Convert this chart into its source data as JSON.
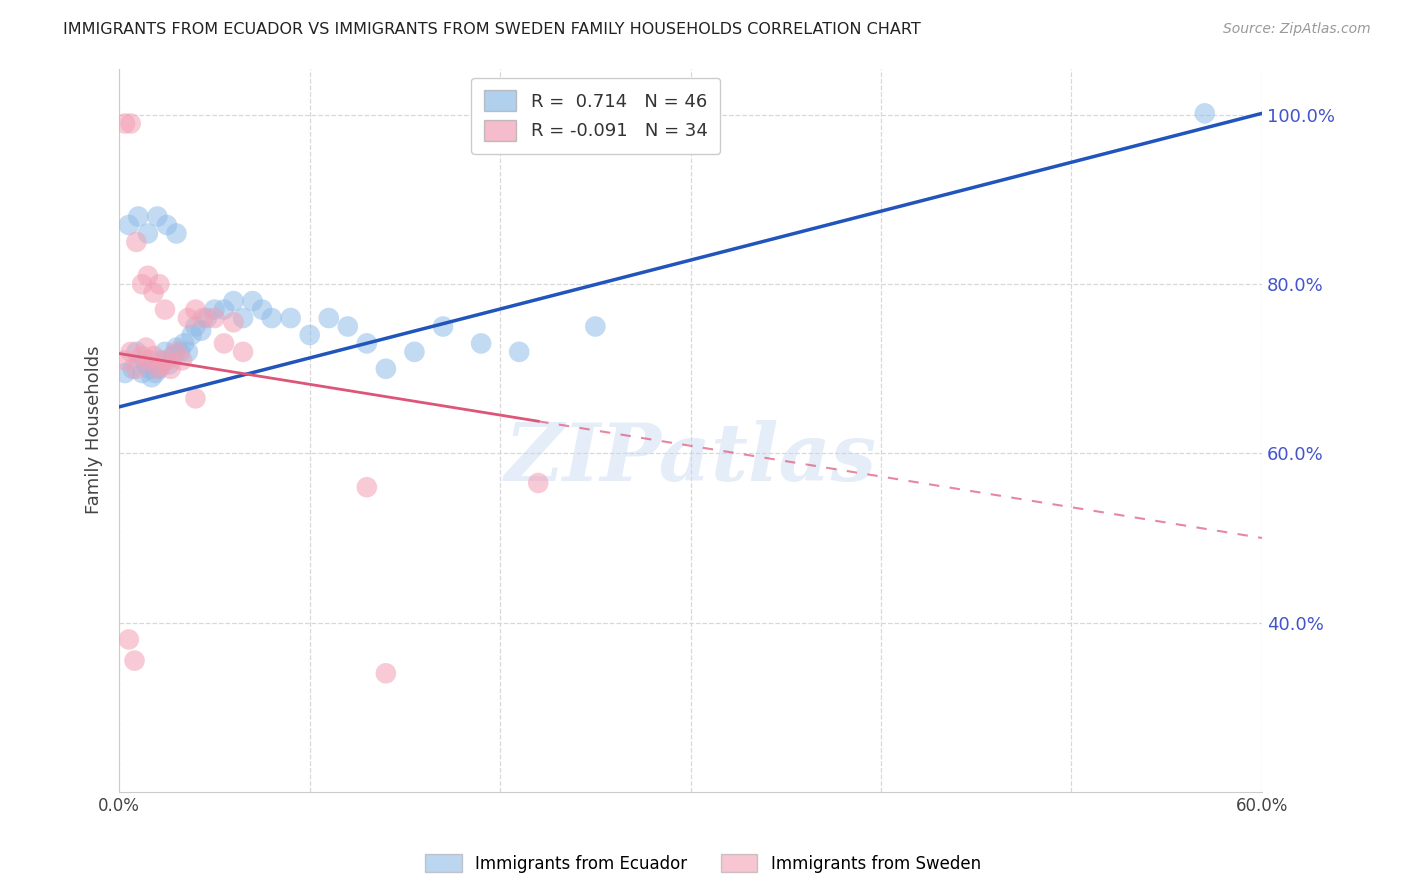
{
  "title": "IMMIGRANTS FROM ECUADOR VS IMMIGRANTS FROM SWEDEN FAMILY HOUSEHOLDS CORRELATION CHART",
  "source": "Source: ZipAtlas.com",
  "ylabel": "Family Households",
  "xlim": [
    0.0,
    0.6
  ],
  "ylim": [
    0.2,
    1.055
  ],
  "yticks": [
    0.4,
    0.6,
    0.8,
    1.0
  ],
  "ytick_labels": [
    "40.0%",
    "60.0%",
    "80.0%",
    "100.0%"
  ],
  "xticks": [
    0.0,
    0.1,
    0.2,
    0.3,
    0.4,
    0.5,
    0.6
  ],
  "xtick_labels": [
    "0.0%",
    "",
    "",
    "",
    "",
    "",
    "60.0%"
  ],
  "ecuador_R": 0.714,
  "ecuador_N": 46,
  "sweden_R": -0.091,
  "sweden_N": 34,
  "ecuador_color": "#90bce8",
  "sweden_color": "#f2a0b5",
  "ecuador_line_color": "#2255bb",
  "sweden_line_color": "#dd5577",
  "watermark": "ZIPatlas",
  "background_color": "#ffffff",
  "grid_color": "#d8d8d8",
  "right_tick_color": "#4455cc",
  "ecuador_line_x0": 0.0,
  "ecuador_line_y0": 0.655,
  "ecuador_line_x1": 0.6,
  "ecuador_line_y1": 1.002,
  "sweden_line_solid_x0": 0.0,
  "sweden_line_solid_y0": 0.718,
  "sweden_line_solid_x1": 0.22,
  "sweden_line_solid_y1": 0.638,
  "sweden_line_dash_x0": 0.22,
  "sweden_line_dash_y0": 0.638,
  "sweden_line_dash_x1": 0.6,
  "sweden_line_dash_y1": 0.5,
  "ecuador_scatter_x": [
    0.003,
    0.007,
    0.009,
    0.012,
    0.014,
    0.016,
    0.017,
    0.019,
    0.021,
    0.022,
    0.024,
    0.026,
    0.028,
    0.03,
    0.032,
    0.034,
    0.036,
    0.038,
    0.04,
    0.043,
    0.046,
    0.05,
    0.055,
    0.06,
    0.065,
    0.07,
    0.075,
    0.08,
    0.09,
    0.1,
    0.11,
    0.12,
    0.13,
    0.14,
    0.155,
    0.17,
    0.19,
    0.21,
    0.25,
    0.005,
    0.01,
    0.015,
    0.02,
    0.025,
    0.03,
    0.57
  ],
  "ecuador_scatter_y": [
    0.695,
    0.7,
    0.72,
    0.695,
    0.705,
    0.7,
    0.69,
    0.695,
    0.7,
    0.71,
    0.72,
    0.705,
    0.715,
    0.725,
    0.72,
    0.73,
    0.72,
    0.74,
    0.75,
    0.745,
    0.76,
    0.77,
    0.77,
    0.78,
    0.76,
    0.78,
    0.77,
    0.76,
    0.76,
    0.74,
    0.76,
    0.75,
    0.73,
    0.7,
    0.72,
    0.75,
    0.73,
    0.72,
    0.75,
    0.87,
    0.88,
    0.86,
    0.88,
    0.87,
    0.86,
    1.002
  ],
  "sweden_scatter_x": [
    0.003,
    0.006,
    0.009,
    0.012,
    0.014,
    0.016,
    0.018,
    0.02,
    0.022,
    0.025,
    0.027,
    0.03,
    0.033,
    0.036,
    0.04,
    0.044,
    0.05,
    0.055,
    0.06,
    0.065,
    0.003,
    0.006,
    0.009,
    0.012,
    0.015,
    0.018,
    0.021,
    0.024,
    0.04,
    0.13,
    0.005,
    0.008,
    0.14,
    0.22
  ],
  "sweden_scatter_y": [
    0.71,
    0.72,
    0.7,
    0.715,
    0.725,
    0.71,
    0.715,
    0.7,
    0.705,
    0.71,
    0.7,
    0.72,
    0.71,
    0.76,
    0.77,
    0.76,
    0.76,
    0.73,
    0.755,
    0.72,
    0.99,
    0.99,
    0.85,
    0.8,
    0.81,
    0.79,
    0.8,
    0.77,
    0.665,
    0.56,
    0.38,
    0.355,
    0.34,
    0.565
  ]
}
